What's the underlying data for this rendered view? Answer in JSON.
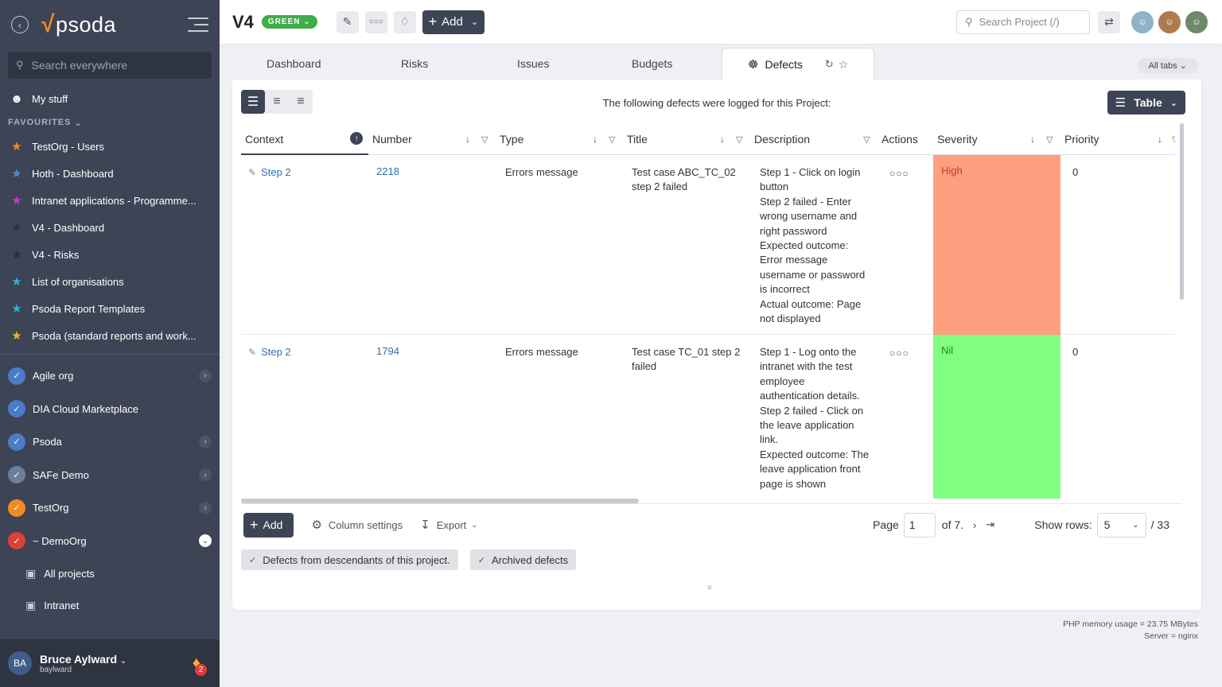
{
  "app": {
    "logo_text": "psoda"
  },
  "sidebar": {
    "search_placeholder": "Search everywhere",
    "my_stuff": "My stuff",
    "favourites_label": "FAVOURITES",
    "favourites": [
      {
        "label": "TestOrg - Users",
        "color": "#f08a24"
      },
      {
        "label": "Hoth - Dashboard",
        "color": "#4a90d9"
      },
      {
        "label": "Intranet applications - Programme...",
        "color": "#c23bd4"
      },
      {
        "label": "V4 - Dashboard",
        "color": "#2b2f3a"
      },
      {
        "label": "V4 - Risks",
        "color": "#2b2f3a"
      },
      {
        "label": "List of organisations",
        "color": "#29b6d8"
      },
      {
        "label": "Psoda Report Templates",
        "color": "#29b6d8"
      },
      {
        "label": "Psoda (standard reports and work...",
        "color": "#f0b429"
      }
    ],
    "orgs": [
      {
        "label": "Agile org"
      },
      {
        "label": "DIA Cloud Marketplace"
      },
      {
        "label": "Psoda"
      },
      {
        "label": "SAFe Demo"
      },
      {
        "label": "TestOrg"
      },
      {
        "label": "~ DemoOrg"
      }
    ],
    "sub_items": [
      {
        "label": "All projects"
      },
      {
        "label": "Intranet"
      }
    ],
    "user": {
      "name": "Bruce Aylward",
      "login": "baylward",
      "notifications": "2"
    }
  },
  "topbar": {
    "project_title": "V4",
    "status": "GREEN",
    "add_label": "Add",
    "search_placeholder": "Search Project (/)"
  },
  "tabs": {
    "items": [
      "Dashboard",
      "Risks",
      "Issues",
      "Budgets"
    ],
    "active": "Defects",
    "all_tabs": "All tabs"
  },
  "main": {
    "caption": "The following defects were logged for this Project:",
    "view_button": "Table",
    "columns": [
      "Context",
      "Number",
      "Type",
      "Title",
      "Description",
      "Actions",
      "Severity",
      "Priority"
    ],
    "rows": [
      {
        "context": "Step 2",
        "number": "2218",
        "type": "Errors message",
        "title": "Test case ABC_TC_02 step 2 failed",
        "description": "Step 1 - Click on login button\nStep 2 failed - Enter wrong username and right password\nExpected outcome: Error message username or password is incorrect\nActual outcome: Page not displayed",
        "severity": "High",
        "severity_color": "#ff9f80",
        "severity_text_color": "#c0392b",
        "priority": "0"
      },
      {
        "context": "Step 2",
        "number": "1794",
        "type": "Errors message",
        "title": "Test case TC_01 step 2 failed",
        "description": "Step 1 - Log onto the intranet with the test employee authentication details.\nStep 2 failed - Click on the leave application link.\nExpected outcome: The leave application front page is shown",
        "severity": "Nil",
        "severity_color": "#80ff80",
        "severity_text_color": "#2e7d32",
        "priority": "0"
      }
    ],
    "footer": {
      "add_label": "Add",
      "column_settings": "Column settings",
      "export": "Export",
      "page_label": "Page",
      "page_value": "1",
      "page_of": "of 7.",
      "show_rows_label": "Show rows:",
      "rows_value": "5",
      "total": "/ 33"
    },
    "chips": [
      "Defects from descendants of this project.",
      "Archived defects"
    ]
  },
  "server_meta": {
    "memory": "PHP memory usage = 23.75 MBytes",
    "server": "Server = nginx"
  },
  "icons": [
    "back-icon",
    "menu-icon",
    "search-icon",
    "user-icon",
    "star-icon",
    "org-icon",
    "briefcase-icon",
    "bell-icon",
    "pencil-icon",
    "dots-icon",
    "tag-icon",
    "plus-icon",
    "switch-icon",
    "bug-icon",
    "refresh-icon",
    "sort-icon",
    "filter-icon",
    "list-icon",
    "export-icon",
    "settings-icon"
  ]
}
